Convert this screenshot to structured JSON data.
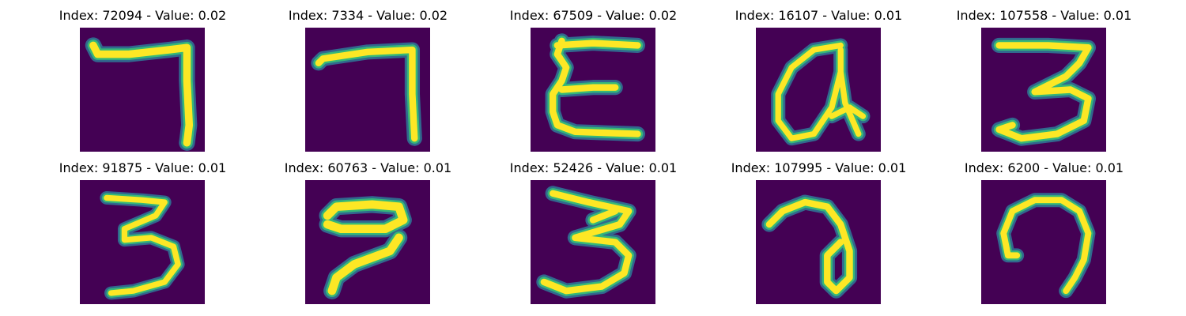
{
  "colors": {
    "background": "#440154",
    "stroke_edge": "#31688e",
    "stroke_mid": "#35b779",
    "stroke_core": "#fde725"
  },
  "panels": [
    {
      "title": "Index: 72094 - Value: 0.02",
      "glyph": "seven"
    },
    {
      "title": "Index: 7334 - Value: 0.02",
      "glyph": "seven-b"
    },
    {
      "title": "Index: 67509 - Value: 0.02",
      "glyph": "e"
    },
    {
      "title": "Index: 16107 - Value: 0.01",
      "glyph": "a"
    },
    {
      "title": "Index: 107558 - Value: 0.01",
      "glyph": "three"
    },
    {
      "title": "Index: 91875 - Value: 0.01",
      "glyph": "three-b"
    },
    {
      "title": "Index: 60763 - Value: 0.01",
      "glyph": "seven-c"
    },
    {
      "title": "Index: 52426 - Value: 0.01",
      "glyph": "three-c"
    },
    {
      "title": "Index: 107995 - Value: 0.01",
      "glyph": "a-b"
    },
    {
      "title": "Index: 6200 - Value: 0.01",
      "glyph": "n"
    }
  ]
}
